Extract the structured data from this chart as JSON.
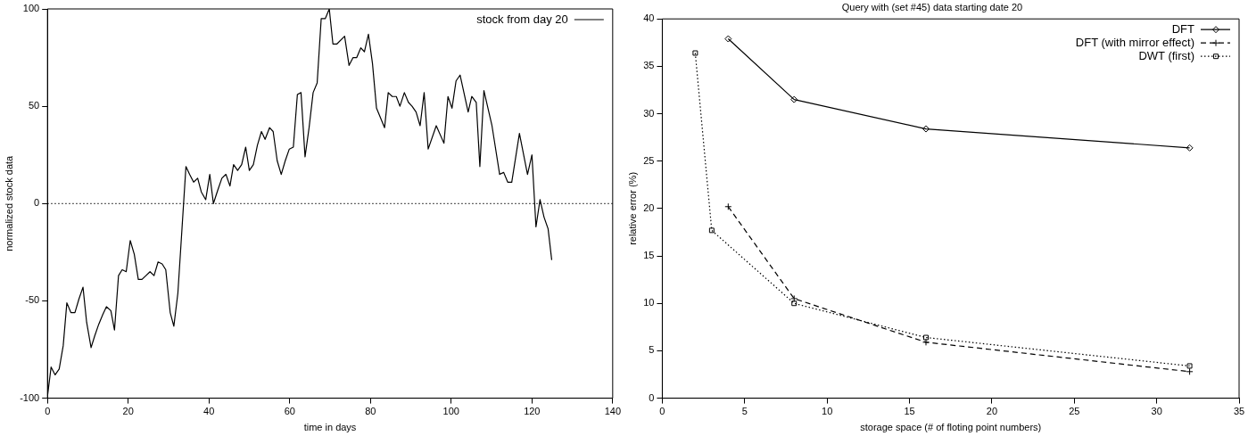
{
  "chart_data": [
    {
      "type": "line",
      "xlabel": "time in days",
      "ylabel": "normalized stock data",
      "xlim": [
        0,
        140
      ],
      "xticks": [
        0,
        20,
        40,
        60,
        80,
        100,
        120,
        140
      ],
      "ylim": [
        -100,
        100
      ],
      "yticks": [
        -100,
        -50,
        0,
        50,
        100
      ],
      "grid": false,
      "legend": "top right",
      "marker": "none",
      "line_style": "solid",
      "ref_lines": [
        {
          "axis": "y",
          "value": 0,
          "line_style": "dotted"
        }
      ],
      "series": [
        {
          "name": "stock from day 20",
          "color": "#000000",
          "x": [
            0,
            0.9,
            1.9,
            2.9,
            3.9,
            4.8,
            5.8,
            6.8,
            7.8,
            8.8,
            9.7,
            10.8,
            11.7,
            12.7,
            13.7,
            14.6,
            15.7,
            16.6,
            17.6,
            18.5,
            19.5,
            20.5,
            21.5,
            22.5,
            23.4,
            24.4,
            25.4,
            26.4,
            27.4,
            28.4,
            29.3,
            30.4,
            31.3,
            32.3,
            34.3,
            35.2,
            36.2,
            37.2,
            38.1,
            39.2,
            40.2,
            41.1,
            42.2,
            43.2,
            44.2,
            45.2,
            46.1,
            47.1,
            48.1,
            49.1,
            50.0,
            51.0,
            52.0,
            53.0,
            53.9,
            55.0,
            55.9,
            56.9,
            57.9,
            58.9,
            59.9,
            60.9,
            61.9,
            62.8,
            63.8,
            64.8,
            65.8,
            66.8,
            67.8,
            68.8,
            69.8,
            70.7,
            71.7,
            73.6,
            74.7,
            75.7,
            76.6,
            77.6,
            78.5,
            79.5,
            80.5,
            81.5,
            83.5,
            84.4,
            85.4,
            86.4,
            87.3,
            88.4,
            89.4,
            90.3,
            91.3,
            92.3,
            93.3,
            94.3,
            96.3,
            98.2,
            99.2,
            100.2,
            101.2,
            102.2,
            104.2,
            105.1,
            106.2,
            107.1,
            108.1,
            110.1,
            112.0,
            113.0,
            114.0,
            115.0,
            116.9,
            118.9,
            120.0,
            121.0,
            122.0,
            123.0,
            124.0,
            124.9
          ],
          "values": [
            -99,
            -84,
            -88,
            -85,
            -73,
            -51,
            -56,
            -56,
            -49,
            -43,
            -61,
            -74,
            -68,
            -62,
            -57,
            -53,
            -55,
            -65,
            -37,
            -34,
            -35,
            -19,
            -26,
            -39,
            -39,
            -37,
            -35,
            -37,
            -30,
            -31,
            -34,
            -56,
            -63,
            -46,
            19,
            15,
            11,
            13,
            6,
            2,
            15,
            0,
            7,
            13,
            15,
            9,
            20,
            17,
            20,
            29,
            17,
            20,
            30,
            37,
            33,
            39,
            37,
            22,
            15,
            22,
            28,
            29,
            56,
            57,
            24,
            39,
            57,
            62,
            95,
            95,
            100,
            82,
            82,
            86,
            71,
            75,
            75,
            80,
            78,
            87,
            72,
            49,
            39,
            57,
            55,
            55,
            50,
            57,
            52,
            50,
            47,
            40,
            57,
            28,
            40,
            31,
            55,
            49,
            63,
            66,
            47,
            55,
            52,
            19,
            58,
            40,
            15,
            16,
            11,
            11,
            36,
            15,
            25,
            -12,
            2,
            -7,
            -13,
            -29
          ]
        }
      ]
    },
    {
      "type": "line",
      "title": "Query with (set #45) data starting date 20",
      "xlabel": "storage space (# of floting point numbers)",
      "ylabel": "relative error (%)",
      "xlim": [
        0,
        35
      ],
      "xticks": [
        0,
        5,
        10,
        15,
        20,
        25,
        30,
        35
      ],
      "ylim": [
        0,
        40
      ],
      "yticks": [
        0,
        5,
        10,
        15,
        20,
        25,
        30,
        35,
        40
      ],
      "grid": false,
      "legend": "top right",
      "series": [
        {
          "name": "DFT",
          "color": "#000000",
          "marker": "diamond",
          "line_style": "solid",
          "x": [
            4,
            8,
            16,
            32
          ],
          "values": [
            37.9,
            31.5,
            28.4,
            26.4
          ]
        },
        {
          "name": "DFT (with mirror effect)",
          "color": "#000000",
          "marker": "cross",
          "line_style": "dashed",
          "x": [
            4,
            8,
            16,
            32
          ],
          "values": [
            20.2,
            10.5,
            5.9,
            2.8
          ]
        },
        {
          "name": "DWT (first)",
          "color": "#000000",
          "marker": "square",
          "line_style": "dotted",
          "x": [
            2,
            3,
            8,
            16,
            32
          ],
          "values": [
            36.4,
            17.7,
            10,
            6.4,
            3.4
          ]
        }
      ]
    }
  ]
}
